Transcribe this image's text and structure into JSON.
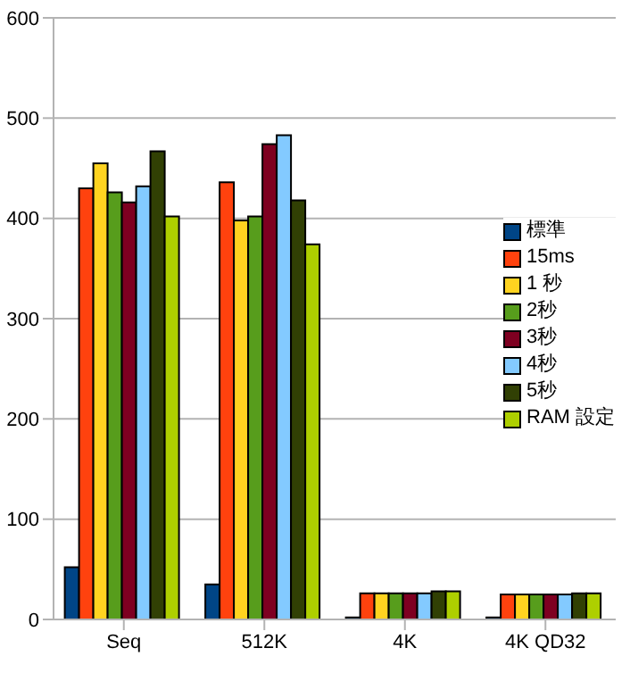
{
  "chart_data": {
    "type": "bar",
    "categories": [
      "Seq",
      "512K",
      "4K",
      "4K QD32"
    ],
    "series": [
      {
        "name": "標準",
        "color": "#004586",
        "values": [
          52,
          35,
          2,
          2
        ]
      },
      {
        "name": "15ms",
        "color": "#ff420e",
        "values": [
          430,
          436,
          26,
          25
        ]
      },
      {
        "name": "1 秒",
        "color": "#ffd320",
        "values": [
          455,
          398,
          26,
          25
        ]
      },
      {
        "name": "2秒",
        "color": "#579d1c",
        "values": [
          426,
          402,
          26,
          25
        ]
      },
      {
        "name": "3秒",
        "color": "#7e0021",
        "values": [
          416,
          474,
          26,
          25
        ]
      },
      {
        "name": "4秒",
        "color": "#83caff",
        "values": [
          432,
          483,
          26,
          25
        ]
      },
      {
        "name": "5秒",
        "color": "#314004",
        "values": [
          467,
          418,
          28,
          26
        ]
      },
      {
        "name": "RAM 設定",
        "color": "#aecf00",
        "values": [
          402,
          374,
          28,
          26
        ]
      }
    ],
    "ylim": [
      0,
      600
    ],
    "yticks": [
      0,
      100,
      200,
      300,
      400,
      500,
      600
    ],
    "grid": "y",
    "legend": "right"
  }
}
